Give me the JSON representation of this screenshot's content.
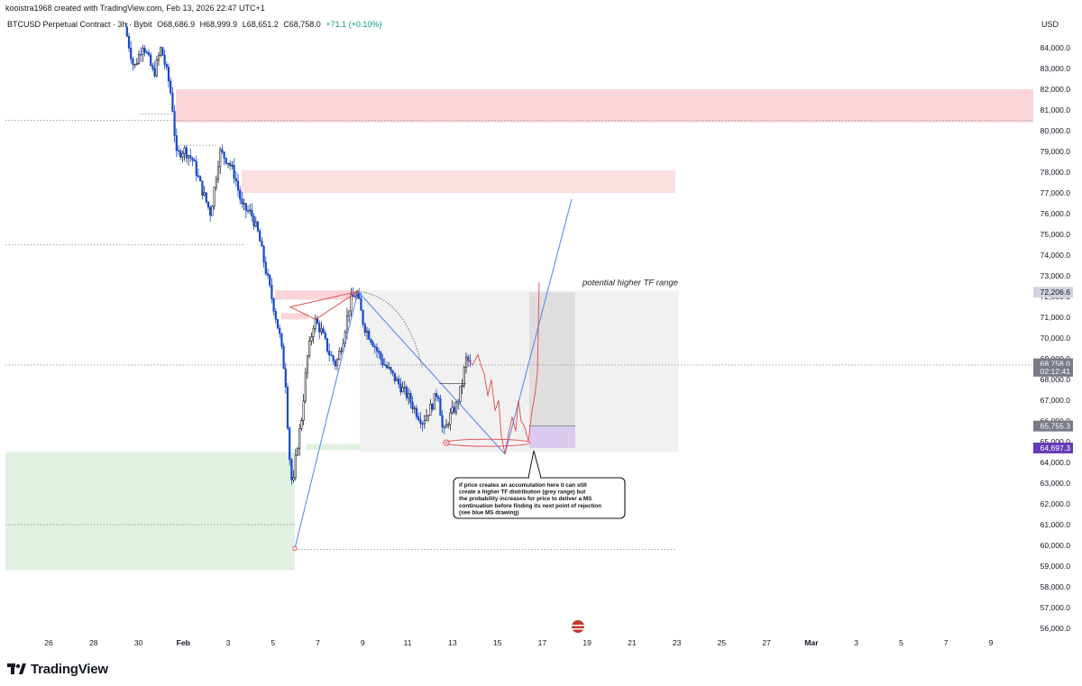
{
  "credit": "kooistra1968 created with TradingView.com, Feb 13, 2026 22:47 UTC+1",
  "legend": {
    "symbol": "BTCUSD Perpetual Contract · 3h · Bybit",
    "open": "O68,686.9",
    "high": "H68,999.9",
    "low": "L68,651.2",
    "close": "C68,758.0",
    "change": "+71.1 (+0.10%)"
  },
  "currency": "USD",
  "brand": "TradingView",
  "colors": {
    "up": "#1e222d",
    "down": "#1848cc",
    "red_zone": "#f7c7cc",
    "red_zone_light": "#fbdadd",
    "green_zone": "#ddefdf",
    "grey_range": "#efefef",
    "purple_tag": "#673ab7",
    "ms_line": "#5b8def",
    "path_red": "#e04a4a"
  },
  "chart_data": {
    "type": "candlestick",
    "y_axis": {
      "min": 55500,
      "max": 84000,
      "ticks": [
        "84,000.0",
        "83,000.0",
        "82,000.0",
        "81,000.0",
        "80,000.0",
        "79,000.0",
        "78,000.0",
        "77,000.0",
        "76,000.0",
        "75,000.0",
        "74,000.0",
        "73,000.0",
        "72,000.0",
        "71,000.0",
        "70,000.0",
        "69,000.0",
        "68,000.0",
        "67,000.0",
        "66,000.0",
        "65,000.0",
        "64,000.0",
        "63,000.0",
        "62,000.0",
        "61,000.0",
        "60,000.0",
        "59,000.0",
        "58,000.0",
        "57,000.0",
        "56,000.0"
      ]
    },
    "x_axis": {
      "labels": [
        "26",
        "28",
        "30",
        "Feb",
        "3",
        "5",
        "7",
        "9",
        "11",
        "13",
        "15",
        "17",
        "19",
        "21",
        "23",
        "25",
        "27",
        "Mar",
        "3",
        "5",
        "7",
        "9"
      ]
    },
    "price_tags": [
      {
        "label": "72,206.6",
        "value": 72206.6,
        "style": "grey"
      },
      {
        "label": "68,758.0",
        "value": 68758.0,
        "style": "dark"
      },
      {
        "label": "02:12:41",
        "value": 68400,
        "style": "dark"
      },
      {
        "label": "65,755.3",
        "value": 65755.3,
        "style": "dark"
      },
      {
        "label": "64,697.3",
        "value": 64697.3,
        "style": "purple"
      }
    ],
    "zones": [
      {
        "name": "supply-zone-upper",
        "from_price": 80400,
        "to_price": 82000
      },
      {
        "name": "supply-zone-mid",
        "from_price": 77000,
        "to_price": 78100
      },
      {
        "name": "demand-zone",
        "from_price": 58800,
        "to_price": 64500
      },
      {
        "name": "grey-range",
        "from_price": 64500,
        "to_price": 72300
      }
    ],
    "annotations": {
      "range_label": "potential higher TF range",
      "note": [
        "if price creates an accumulation here it can still",
        "create a higher TF distribution (grey range) but",
        "the probability increases for price to deliver a MS",
        "continuation before finding its next point of rejection",
        "(see blue MS drawing)"
      ]
    }
  }
}
